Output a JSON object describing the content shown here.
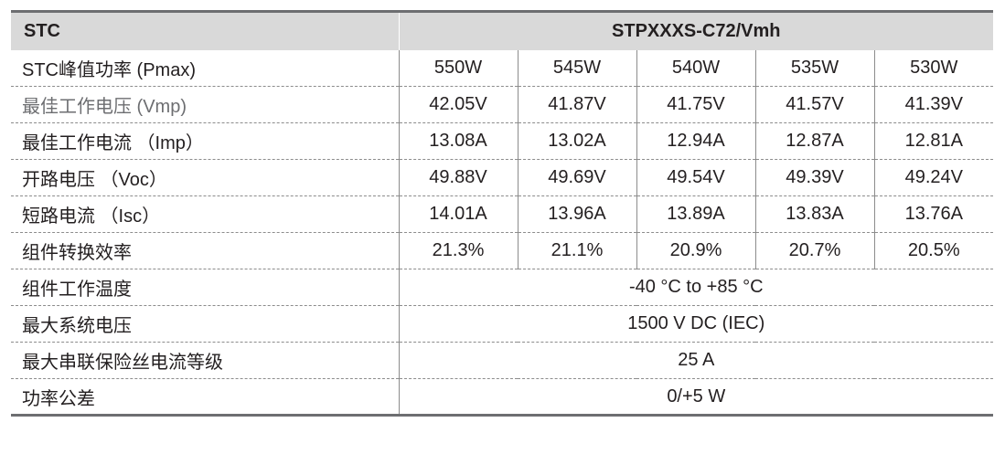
{
  "header": {
    "label": "STC",
    "model": "STPXXXS-C72/Vmh"
  },
  "rows_multi": [
    {
      "label": "STC峰值功率 (Pmax)",
      "muted": false,
      "values": [
        "550W",
        "545W",
        "540W",
        "535W",
        "530W"
      ]
    },
    {
      "label": "最佳工作电压 (Vmp)",
      "muted": true,
      "values": [
        "42.05V",
        "41.87V",
        "41.75V",
        "41.57V",
        "41.39V"
      ]
    },
    {
      "label": "最佳工作电流 （Imp）",
      "muted": false,
      "values": [
        "13.08A",
        "13.02A",
        "12.94A",
        "12.87A",
        "12.81A"
      ]
    },
    {
      "label": "开路电压 （Voc）",
      "muted": false,
      "values": [
        "49.88V",
        "49.69V",
        "49.54V",
        "49.39V",
        "49.24V"
      ]
    },
    {
      "label": "短路电流 （Isc）",
      "muted": false,
      "values": [
        "14.01A",
        "13.96A",
        "13.89A",
        "13.83A",
        "13.76A"
      ]
    },
    {
      "label": "组件转换效率",
      "muted": false,
      "values": [
        "21.3%",
        "21.1%",
        "20.9%",
        "20.7%",
        "20.5%"
      ]
    }
  ],
  "rows_single": [
    {
      "label": "组件工作温度",
      "value": "-40 °C to +85 °C"
    },
    {
      "label": "最大系统电压",
      "value": "1500 V DC (IEC)"
    },
    {
      "label": "最大串联保险丝电流等级",
      "value": "25 A"
    },
    {
      "label": "功率公差",
      "value": "0/+5 W"
    }
  ]
}
